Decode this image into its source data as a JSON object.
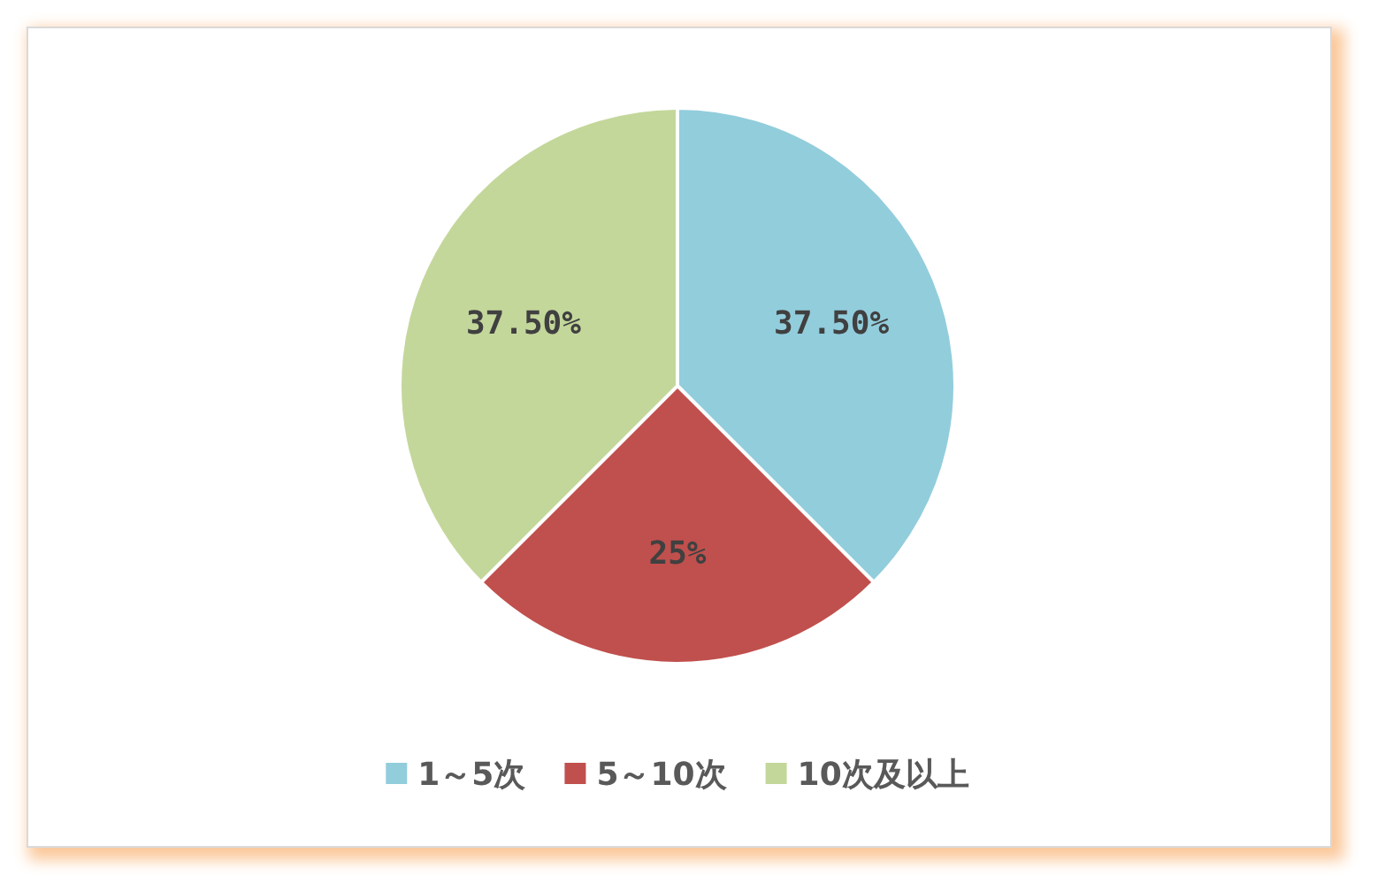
{
  "chart_data": {
    "type": "pie",
    "categories": [
      "1～5次",
      "5～10次",
      "10次及以上"
    ],
    "values": [
      37.5,
      25,
      37.5
    ],
    "colors": [
      "#92cddc",
      "#c0504d",
      "#c4d79b"
    ],
    "value_labels": [
      "37.50%",
      "25%",
      "37.50%"
    ],
    "legend": "bottom"
  }
}
